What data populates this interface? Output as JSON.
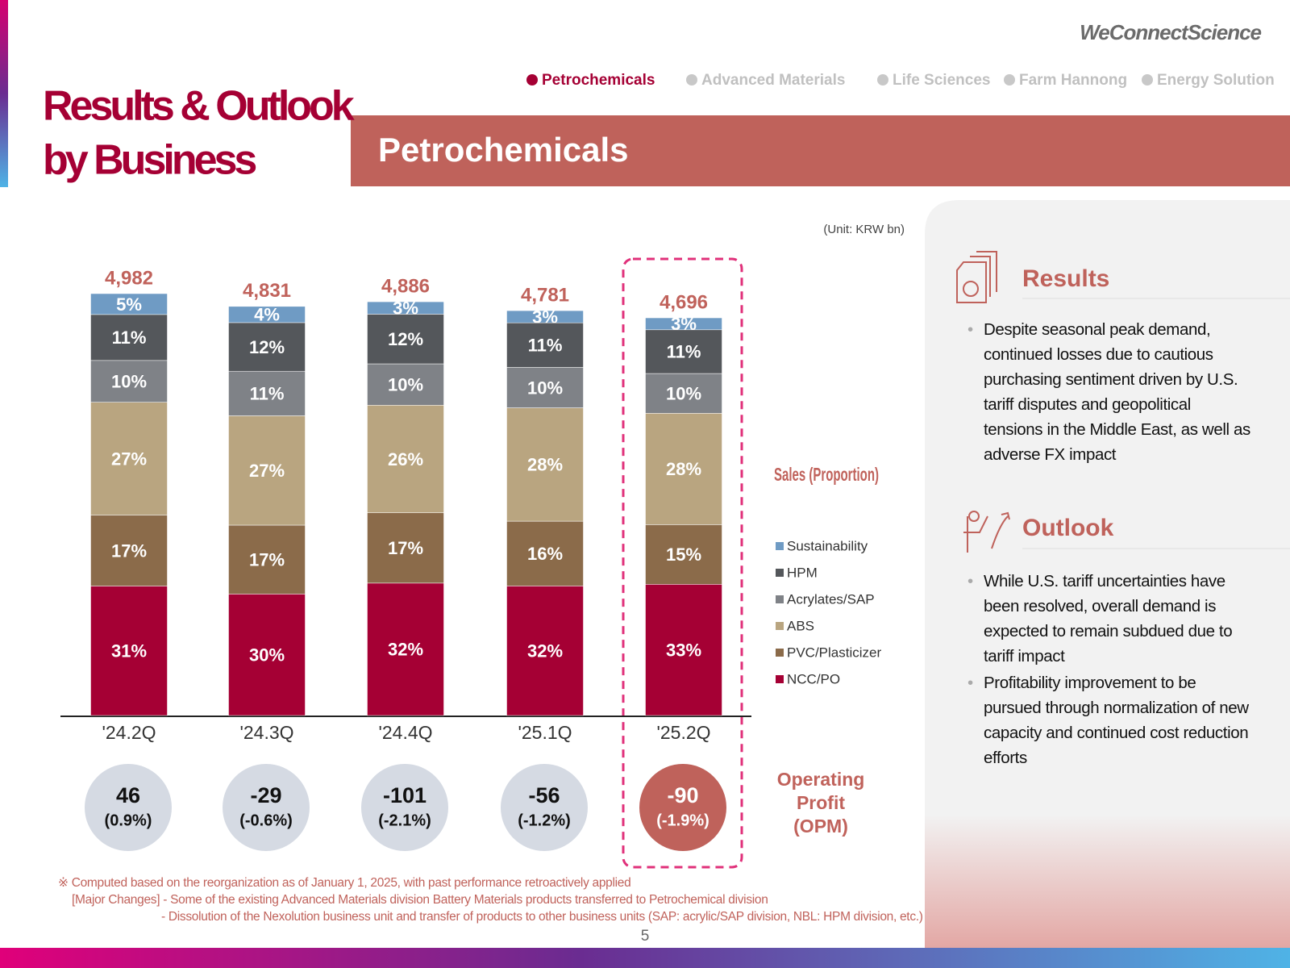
{
  "header": {
    "title_lines": [
      "Results & Outlook",
      "by Business"
    ],
    "logo": "WeConnectScience",
    "nav": [
      "Petrochemicals",
      "Advanced Materials",
      "Life Sciences",
      "Farm Hannong",
      "Energy Solution"
    ],
    "section": "Petrochemicals"
  },
  "chart_data": {
    "type": "bar",
    "stacked": true,
    "unit": "(Unit: KRW bn)",
    "label": "Sales (Proportion)",
    "categories": [
      "'24.2Q",
      "'24.3Q",
      "'24.4Q",
      "'25.1Q",
      "'25.2Q"
    ],
    "series": [
      {
        "name": "NCC/PO",
        "color": "#a50034",
        "values": [
          31,
          30,
          32,
          32,
          33
        ],
        "value_labels": [
          "31%",
          "30%",
          "32%",
          "32%",
          "33%"
        ]
      },
      {
        "name": "PVC/Plasticizer",
        "color": "#8b6b4a",
        "values": [
          17,
          17,
          17,
          16,
          15
        ],
        "value_labels": [
          "17%",
          "17%",
          "17%",
          "16%",
          "15%"
        ]
      },
      {
        "name": "ABS",
        "color": "#b9a580",
        "values": [
          27,
          27,
          26,
          28,
          28
        ],
        "value_labels": [
          "27%",
          "27%",
          "26%",
          "28%",
          "28%"
        ]
      },
      {
        "name": "Acrylates/SAP",
        "color": "#7f8287",
        "values": [
          10,
          11,
          10,
          10,
          10
        ],
        "value_labels": [
          "10%",
          "11%",
          "10%",
          "10%",
          "10%"
        ]
      },
      {
        "name": "HPM",
        "color": "#54575b",
        "values": [
          11,
          12,
          12,
          11,
          11
        ],
        "value_labels": [
          "11%",
          "12%",
          "12%",
          "11%",
          "11%"
        ]
      },
      {
        "name": "Sustainability",
        "color": "#6f9bc4",
        "values": [
          5,
          4,
          3,
          3,
          3
        ],
        "value_labels": [
          "5%",
          "4%",
          "3%",
          "3%",
          "3%"
        ]
      }
    ],
    "totals": {
      "values": [
        4982,
        4831,
        4886,
        4781,
        4696
      ],
      "value_labels": [
        "4,982",
        "4,831",
        "4,886",
        "4,781",
        "4,696"
      ]
    },
    "operating_profit": {
      "label_lines": [
        "Operating",
        "Profit",
        "(OPM)"
      ],
      "values": [
        46,
        -29,
        -101,
        -56,
        -90
      ],
      "opm": [
        0.9,
        -0.6,
        -2.1,
        -1.2,
        -1.9
      ],
      "opm_labels": [
        "(0.9%)",
        "(-0.6%)",
        "(-2.1%)",
        "(-1.2%)",
        "(-1.9%)"
      ]
    }
  },
  "results": {
    "title": "Results",
    "bullets": [
      "Despite seasonal peak demand, continued losses due to cautious purchasing sentiment driven by U.S. tariff disputes and geopolitical tensions in the Middle East, as well as adverse FX impact"
    ]
  },
  "outlook": {
    "title": "Outlook",
    "bullets": [
      "While U.S. tariff uncertainties have been resolved, overall demand is expected to remain subdued due to tariff impact",
      "Profitability improvement to be pursued through normalization of new capacity and continued cost reduction efforts"
    ]
  },
  "footnotes": [
    "※ Computed based on the reorganization as of January 1, 2025, with past performance retroactively applied",
    "[Major Changes] - Some of the existing Advanced Materials division Battery Materials products transferred to Petrochemical division",
    "- Dissolution of the Nexolution business unit and transfer of products to other business units (SAP: acrylic/SAP division, NBL: HPM division, etc.)"
  ],
  "page_number": "5"
}
